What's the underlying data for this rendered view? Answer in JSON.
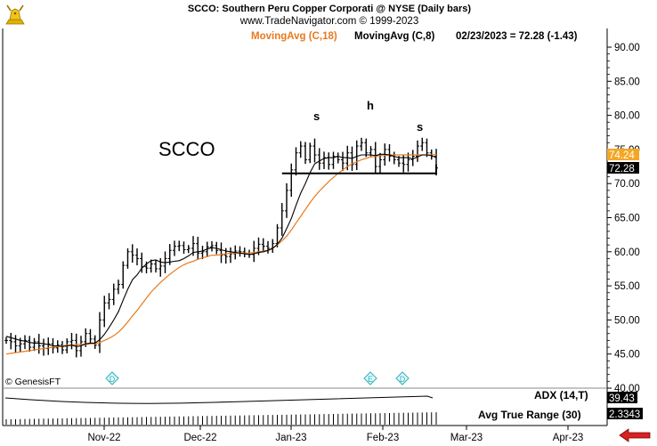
{
  "header": {
    "title": "SCCO:  Southern Peru Copper Corporati @ NYSE  (Daily bars)",
    "copyright": "www.TradeNavigator.com © 1999-2023",
    "ma18_label": "MovingAvg (C,18)",
    "ma8_label": "MovingAvg (C,8)",
    "quote": "02/23/2023 = 72.28 (-1.43)"
  },
  "symbol_annotation": "SCCO",
  "pattern_labels": {
    "left_shoulder": "s",
    "head": "h",
    "right_shoulder": "s"
  },
  "watermark": "© GenesisFT",
  "event_markers": [
    "D",
    "E",
    "D"
  ],
  "indicators": {
    "adx_label": "ADX (14,T)",
    "adx_value": "39.43",
    "atr_label": "Avg True Range (30)",
    "atr_value": "2.3343"
  },
  "colors": {
    "bars": "#000000",
    "ma18": "#e87a1e",
    "ma8": "#000000",
    "ma18_box": "#f5a623",
    "price_box": "#000000",
    "event_marker": "#2bb0b8",
    "nav_arrow": "#d92020"
  },
  "chart_data": {
    "type": "ohlc",
    "interval": "daily",
    "y_axis": {
      "min": 40,
      "max": 90,
      "ticks": [
        "90.00",
        "85.00",
        "80.00",
        "75.00",
        "70.00",
        "65.00",
        "60.00",
        "55.00",
        "50.00",
        "45.00",
        "40.00"
      ]
    },
    "x_axis": {
      "labels": [
        "Nov-22",
        "Dec-22",
        "Jan-23",
        "Feb-23",
        "Mar-23",
        "Apr-23"
      ]
    },
    "last_close": "72.28",
    "ma18_last": "74.24",
    "neckline": 71.5,
    "closes": [
      47.0,
      46.8,
      46.2,
      46.5,
      47.0,
      46.0,
      46.8,
      46.2,
      45.8,
      46.5,
      45.9,
      46.3,
      45.6,
      46.8,
      47.0,
      45.5,
      46.8,
      48.0,
      47.2,
      46.3,
      50.0,
      52.5,
      53.0,
      54.5,
      55.2,
      58.0,
      60.0,
      59.5,
      59.0,
      57.8,
      57.6,
      58.2,
      57.5,
      57.9,
      59.0,
      60.2,
      60.8,
      60.9,
      60.3,
      60.5,
      61.2,
      59.8,
      60.0,
      60.7,
      60.9,
      60.2,
      59.5,
      59.3,
      59.7,
      60.1,
      60.0,
      59.8,
      59.6,
      60.5,
      61.1,
      60.8,
      60.5,
      61.2,
      63.5,
      66.0,
      69.0,
      72.0,
      74.5,
      75.5,
      73.5,
      75.5,
      74.2,
      73.0,
      73.8,
      72.8,
      74.0,
      73.5,
      73.0,
      74.5,
      72.8,
      75.5,
      76.0,
      74.5,
      75.0,
      72.5,
      73.5,
      75.0,
      74.0,
      73.5,
      73.0,
      72.8,
      73.5,
      74.0,
      75.5,
      76.0,
      74.5,
      74.0,
      72.28
    ],
    "ma8": [
      47.6,
      47.4,
      47.2,
      47.0,
      46.9,
      46.7,
      46.6,
      46.6,
      46.5,
      46.4,
      46.2,
      46.2,
      46.1,
      46.2,
      46.3,
      46.1,
      46.2,
      46.5,
      46.6,
      46.6,
      47.1,
      47.9,
      48.9,
      50.0,
      51.2,
      52.9,
      54.5,
      55.9,
      56.6,
      57.6,
      58.2,
      58.7,
      58.8,
      58.5,
      58.4,
      58.5,
      58.6,
      58.7,
      59.0,
      59.4,
      59.9,
      60.0,
      60.1,
      60.4,
      60.6,
      60.5,
      60.3,
      60.1,
      60.0,
      59.9,
      59.8,
      59.7,
      59.6,
      59.7,
      59.9,
      60.0,
      60.2,
      60.5,
      61.1,
      62.0,
      63.4,
      64.9,
      66.8,
      68.6,
      70.0,
      71.6,
      72.9,
      73.3,
      73.7,
      73.8,
      73.8,
      74.0,
      73.8,
      73.8,
      73.7,
      74.0,
      74.2,
      74.2,
      74.2,
      74.1,
      74.3,
      74.3,
      74.2,
      74.0,
      73.8,
      73.8,
      73.8,
      73.6,
      73.9,
      74.2,
      74.2,
      74.1,
      73.8
    ],
    "ma18": [
      45.0,
      45.1,
      45.2,
      45.3,
      45.4,
      45.5,
      45.6,
      45.7,
      45.8,
      45.9,
      46.0,
      46.1,
      46.2,
      46.3,
      46.3,
      46.4,
      46.4,
      46.4,
      46.5,
      46.5,
      46.7,
      47.0,
      47.3,
      47.7,
      48.2,
      48.9,
      49.7,
      50.6,
      51.4,
      52.3,
      53.2,
      54.1,
      54.8,
      55.5,
      56.1,
      56.7,
      57.2,
      57.7,
      58.1,
      58.4,
      58.6,
      58.9,
      59.1,
      59.3,
      59.5,
      59.5,
      59.6,
      59.7,
      59.8,
      59.8,
      59.8,
      59.8,
      59.8,
      59.9,
      60.0,
      60.1,
      60.2,
      60.5,
      61.0,
      61.6,
      62.3,
      63.2,
      64.2,
      65.2,
      66.2,
      67.2,
      68.1,
      68.9,
      69.6,
      70.3,
      70.9,
      71.5,
      72.0,
      72.5,
      72.9,
      73.2,
      73.5,
      73.7,
      73.9,
      74.0,
      74.1,
      74.1,
      74.2,
      74.2,
      74.2,
      74.2,
      74.2,
      74.2,
      74.2,
      74.2,
      74.2,
      74.2,
      74.24
    ]
  }
}
